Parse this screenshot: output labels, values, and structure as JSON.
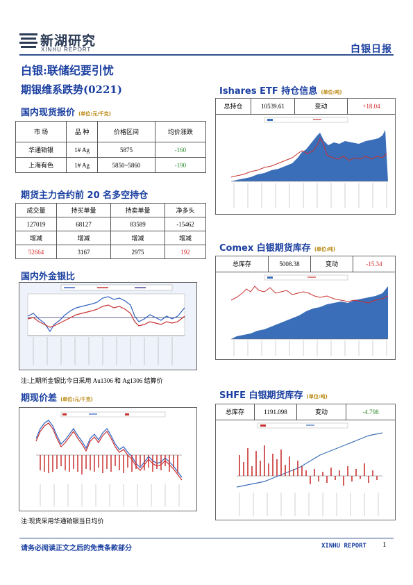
{
  "header": {
    "logo_cn": "新湖研究",
    "logo_en": "XINHU REPORT",
    "report_type": "白银日报"
  },
  "headline": {
    "line1": "白银:联储纪要引忧",
    "line2": "期银维系跌势(0221)"
  },
  "spot": {
    "title": "国内现货报价",
    "unit": "(单位:元/千克)",
    "headers": [
      "市 场",
      "品 种",
      "价格区间",
      "均价涨跌"
    ],
    "rows": [
      {
        "market": "华通铂银",
        "product": "1# Ag",
        "range": "5875",
        "change": "-160"
      },
      {
        "market": "上海有色",
        "product": "1# Ag",
        "range": "5850~5860",
        "change": "-190"
      }
    ]
  },
  "top20": {
    "title": "期货主力合约前 20 名多空持仓",
    "headers1": [
      "成交量",
      "持买单量",
      "持卖单量",
      "净多头"
    ],
    "row1": [
      "127019",
      "68127",
      "83589",
      "-15462"
    ],
    "headers2": [
      "增减",
      "增减",
      "增减",
      "增减"
    ],
    "row2": [
      "52664",
      "3167",
      "2975",
      "192"
    ]
  },
  "ratio": {
    "title": "国内外金银比",
    "note": "注:上期所金银比今日采用 Au1306 和 Ag1306 结算价"
  },
  "basis": {
    "title": "期现价差",
    "unit": "(单位:元/千克)",
    "note": "注:现货采用华通铂银当日均价"
  },
  "etf": {
    "title": "Ishares ETF 持仓信息",
    "unit": "(单位:吨)",
    "label1": "总持仓",
    "value1": "10539.61",
    "label2": "变动",
    "value2": "+18.04"
  },
  "comex": {
    "title": "Comex 白银期货库存",
    "unit": "(单位:吨)",
    "label1": "总库存",
    "value1": "5008.38",
    "label2": "变动",
    "value2": "-15.34"
  },
  "shfe": {
    "title": "SHFE 白银期货库存",
    "unit": "(单位:吨)",
    "label1": "总库存",
    "value1": "1191.098",
    "label2": "变动",
    "value2": "-4.798"
  },
  "footer": {
    "disclaimer": "请务必阅读正文之后的免责条款部分",
    "brand": "XINHU REPORT",
    "page": "1"
  },
  "colors": {
    "brand_blue": "#1a3fa0",
    "rule": "#2f4f8f",
    "green": "#2e8b2e",
    "red": "#d42a2a",
    "unit_gold": "#b8860b"
  }
}
